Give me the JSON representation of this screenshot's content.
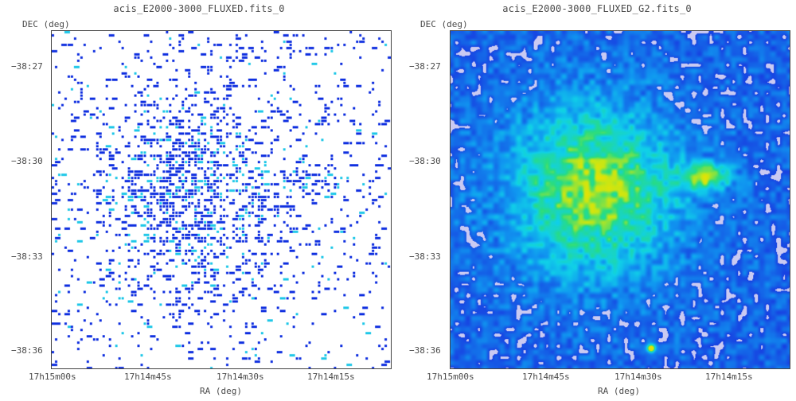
{
  "panels": [
    {
      "title": "acis_E2000-3000_FLUXED.fits_0",
      "ylabel": "DEC (deg)",
      "xlabel": "RA (deg)",
      "yticks": [
        "−38:27",
        "−38:30",
        "−38:33",
        "−38:36"
      ],
      "xticks": [
        "17h15m00s",
        "17h14m45s",
        "17h14m30s",
        "17h14m15s"
      ],
      "image_kind": "sparse-counts",
      "colors": {
        "background": "#ffffff",
        "dark": "#1030e0",
        "light": "#20c8e8"
      }
    },
    {
      "title": "acis_E2000-3000_FLUXED_G2.fits_0",
      "ylabel": "DEC (deg)",
      "xlabel": "RA (deg)",
      "yticks": [
        "−38:27",
        "−38:30",
        "−38:33",
        "−38:36"
      ],
      "xticks": [
        "17h15m00s",
        "17h14m45s",
        "17h14m30s",
        "17h14m15s"
      ],
      "image_kind": "smoothed-heatmap",
      "colors": {
        "low": "#1838e0",
        "mid": "#10d0e8",
        "high": "#f0e000",
        "peak": "#e02000",
        "void": "#ffffff"
      }
    }
  ]
}
